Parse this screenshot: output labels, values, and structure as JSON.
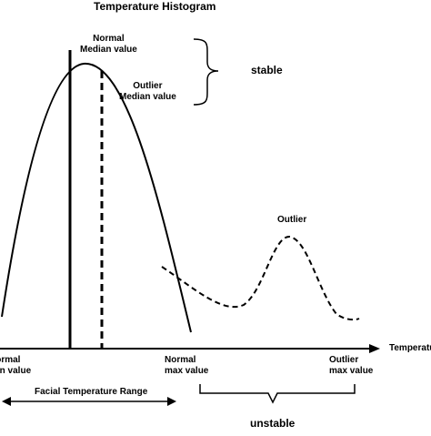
{
  "title": "Temperature Histogram",
  "axis": {
    "x_label": "Temperature"
  },
  "labels": {
    "normal_median": [
      "Normal",
      "Median value"
    ],
    "outlier_median": [
      "Outlier",
      "Median value"
    ],
    "stable": "stable",
    "outlier_peak": "Outlier",
    "normal_min": [
      "Normal",
      "min value"
    ],
    "normal_max": [
      "Normal",
      "max value"
    ],
    "outlier_max": [
      "Outlier",
      "max value"
    ],
    "facial_range": "Facial Temperature Range",
    "unstable": "unstable"
  },
  "colors": {
    "ink": "#000000",
    "background": "#ffffff"
  }
}
